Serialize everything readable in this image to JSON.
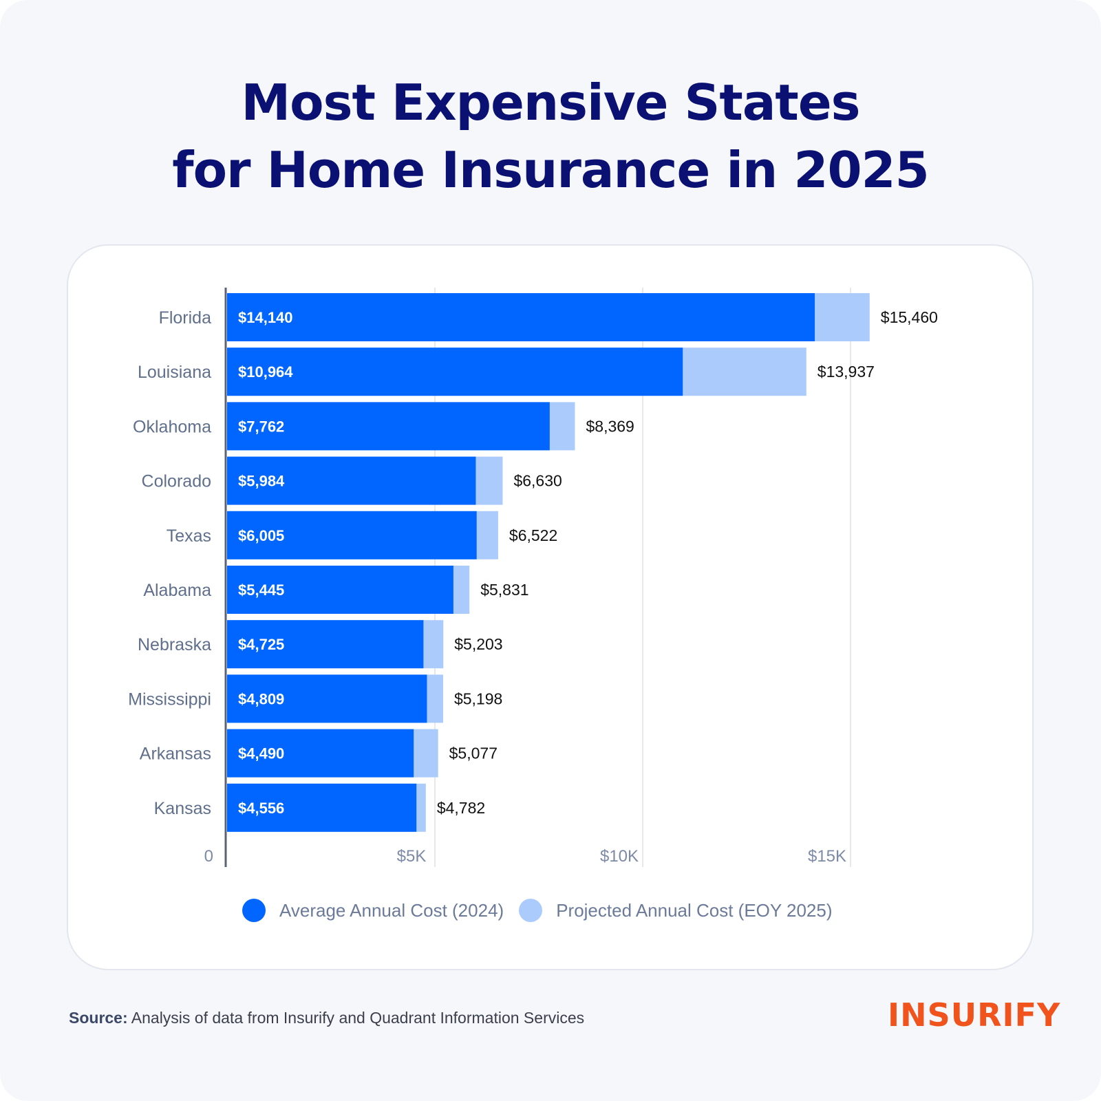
{
  "title": {
    "line1": "Most Expensive States",
    "line2": "for Home Insurance in 2025"
  },
  "colors": {
    "title": "#0a1172",
    "series_2024": "#0066ff",
    "series_2025": "#abcbfd",
    "logo": "#f0531c"
  },
  "chart_data": {
    "type": "bar",
    "orientation": "horizontal",
    "layout": "overlapping",
    "categories": [
      "Florida",
      "Louisiana",
      "Oklahoma",
      "Colorado",
      "Texas",
      "Alabama",
      "Nebraska",
      "Mississippi",
      "Arkansas",
      "Kansas"
    ],
    "series": [
      {
        "name": "Average Annual Cost (2024)",
        "values": [
          14140,
          10964,
          7762,
          5984,
          6005,
          5445,
          4725,
          4809,
          4490,
          4556
        ],
        "labels": [
          "$14,140",
          "$10,964",
          "$7,762",
          "$5,984",
          "$6,005",
          "$5,445",
          "$4,725",
          "$4,809",
          "$4,490",
          "$4,556"
        ]
      },
      {
        "name": "Projected Annual Cost (EOY 2025)",
        "values": [
          15460,
          13937,
          8369,
          6630,
          6522,
          5831,
          5203,
          5198,
          5077,
          4782
        ],
        "labels": [
          "$15,460",
          "$13,937",
          "$8,369",
          "$6,630",
          "$6,522",
          "$5,831",
          "$5,203",
          "$5,198",
          "$5,077",
          "$4,782"
        ]
      }
    ],
    "xlim": [
      0,
      15000
    ],
    "x_ticks": [
      0,
      5000,
      10000,
      15000
    ],
    "x_tick_labels": [
      "0",
      "$5K",
      "$10K",
      "$15K"
    ],
    "grid": true,
    "legend": "bottom"
  },
  "source": {
    "label": "Source:",
    "text": "Analysis of data from Insurify and Quadrant Information Services"
  },
  "logo": {
    "text": "INSURIFY"
  }
}
